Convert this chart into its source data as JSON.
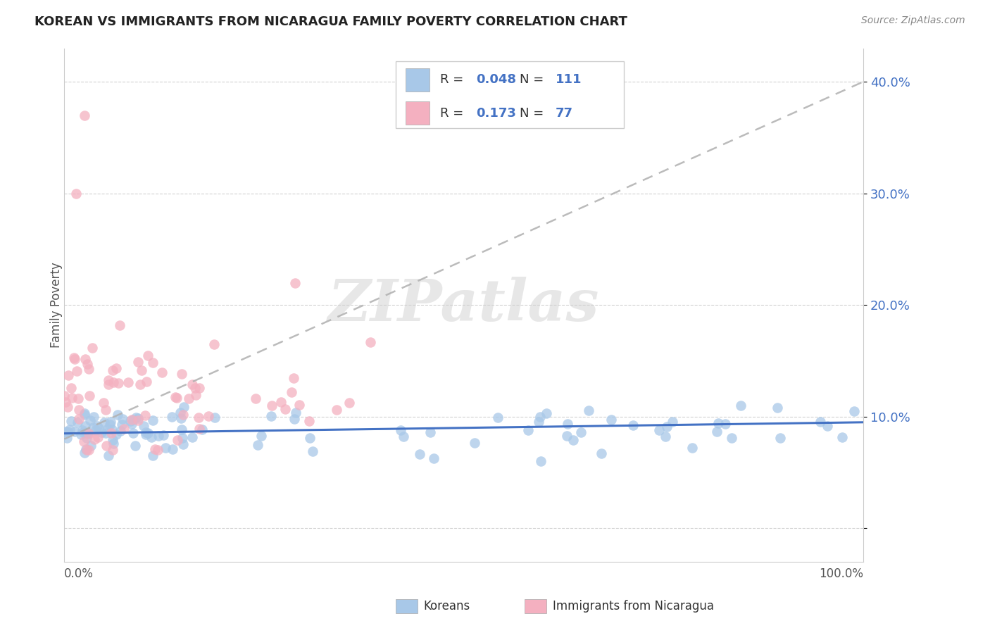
{
  "title": "KOREAN VS IMMIGRANTS FROM NICARAGUA FAMILY POVERTY CORRELATION CHART",
  "source": "Source: ZipAtlas.com",
  "ylabel": "Family Poverty",
  "y_tick_positions": [
    0,
    10,
    20,
    30,
    40
  ],
  "y_tick_labels": [
    "",
    "10.0%",
    "20.0%",
    "30.0%",
    "40.0%"
  ],
  "xlim": [
    0,
    100
  ],
  "ylim": [
    -3,
    43
  ],
  "korean_R": 0.048,
  "korean_N": 111,
  "nicaragua_R": 0.173,
  "nicaragua_N": 77,
  "korean_color": "#a8c8e8",
  "nicaragua_color": "#f4b0c0",
  "korean_line_color": "#4472c4",
  "nicaragua_line_color": "#e878a0",
  "legend_korean_label": "Koreans",
  "legend_nicaragua_label": "Immigrants from Nicaragua",
  "watermark_text": "ZIPatlas",
  "background_color": "#ffffff",
  "grid_color": "#cccccc",
  "tick_label_color": "#4472c4",
  "title_color": "#222222",
  "source_color": "#888888",
  "ylabel_color": "#555555",
  "korean_line_y_start": 8.5,
  "korean_line_y_end": 9.5,
  "nicaragua_line_y_start": 8.0,
  "nicaragua_line_y_end": 40.0
}
